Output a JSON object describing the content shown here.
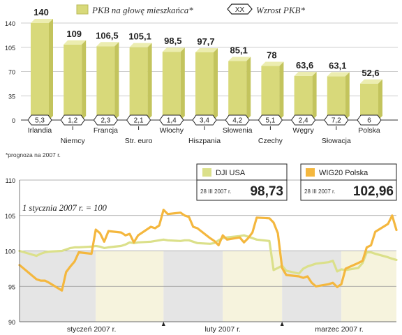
{
  "chart_data": [
    {
      "type": "bar",
      "legend": [
        {
          "label": "PKB na głowę mieszkańca*",
          "color": "#d8d97a"
        },
        {
          "label": "Wzrost PKB*",
          "marker": "XX"
        }
      ],
      "categories": [
        "Irlandia",
        "Niemcy",
        "Francja",
        "Str. euro",
        "Włochy",
        "Hiszpania",
        "Słowenia",
        "Czechy",
        "Węgry",
        "Słowacja",
        "Polska"
      ],
      "values": [
        140,
        109,
        106.5,
        105.1,
        98.5,
        97.7,
        85.1,
        78,
        63.6,
        63.1,
        52.6
      ],
      "value_labels": [
        "140",
        "109",
        "106,5",
        "105,1",
        "98,5",
        "97,7",
        "85,1",
        "78",
        "63,6",
        "63,1",
        "52,6"
      ],
      "growth_labels": [
        "5,3",
        "1,2",
        "2,3",
        "2,1",
        "1,4",
        "3,4",
        "4,2",
        "5,1",
        "2,4",
        "7,2",
        "6"
      ],
      "yticks": [
        "0",
        "35",
        "70",
        "105",
        "140"
      ],
      "ylim": [
        0,
        140
      ],
      "footnote": "*prognoza na 2007 r."
    },
    {
      "type": "line",
      "annotation": "1 stycznia 2007 r. = 100",
      "ylim": [
        90,
        110
      ],
      "yticks": [
        "90",
        "95",
        "100",
        "105",
        "110"
      ],
      "x_labels": [
        "styczeń 2007 r.",
        "luty 2007 r.",
        "marzec 2007 r."
      ],
      "x": [
        "2006-12-29",
        "2007-01-02",
        "2007-01-03",
        "2007-01-04",
        "2007-01-05",
        "2007-01-08",
        "2007-01-09",
        "2007-01-10",
        "2007-01-11",
        "2007-01-12",
        "2007-01-15",
        "2007-01-16",
        "2007-01-17",
        "2007-01-18",
        "2007-01-19",
        "2007-01-22",
        "2007-01-23",
        "2007-01-24",
        "2007-01-25",
        "2007-01-26",
        "2007-01-29",
        "2007-01-30",
        "2007-01-31",
        "2007-02-01",
        "2007-02-02",
        "2007-02-05",
        "2007-02-06",
        "2007-02-07",
        "2007-02-08",
        "2007-02-09",
        "2007-02-12",
        "2007-02-13",
        "2007-02-14",
        "2007-02-15",
        "2007-02-16",
        "2007-02-19",
        "2007-02-20",
        "2007-02-21",
        "2007-02-22",
        "2007-02-23",
        "2007-02-26",
        "2007-02-27",
        "2007-02-28",
        "2007-03-01",
        "2007-03-02",
        "2007-03-05",
        "2007-03-06",
        "2007-03-07",
        "2007-03-08",
        "2007-03-09",
        "2007-03-12",
        "2007-03-13",
        "2007-03-14",
        "2007-03-15",
        "2007-03-16",
        "2007-03-19",
        "2007-03-20",
        "2007-03-21",
        "2007-03-22",
        "2007-03-23",
        "2007-03-26",
        "2007-03-27",
        "2007-03-28"
      ],
      "series": [
        {
          "name": "WIG20 Polska",
          "color": "#f4b73e",
          "last_label": "28 III 2007 r.",
          "last_value": "102,96",
          "values": [
            98,
            96,
            95.8,
            95.8,
            95.5,
            94.4,
            97,
            97.8,
            98.5,
            99.8,
            99.6,
            103,
            102.5,
            101.3,
            102.8,
            102.6,
            102.2,
            102.4,
            101.2,
            102.2,
            103.4,
            103.2,
            103.6,
            105.8,
            105.2,
            105.4,
            105,
            104.8,
            103.4,
            103.2,
            101.8,
            101.4,
            100.8,
            102.2,
            101.6,
            101.9,
            101.2,
            101.8,
            102.6,
            104.7,
            104.6,
            104,
            102.5,
            97.6,
            96.6,
            96.4,
            96.2,
            96.4,
            95.5,
            95,
            95.3,
            95.5,
            94.9,
            95.3,
            97.5,
            98.3,
            98.6,
            100.5,
            100.8,
            102.7,
            103.8,
            105,
            102.96
          ]
        },
        {
          "name": "DJI USA",
          "color": "#dbe08a",
          "last_label": "28 III 2007 r.",
          "last_value": "98,73",
          "values": [
            100,
            99.3,
            99.6,
            99.8,
            99.9,
            100,
            100.2,
            100.4,
            100.5,
            100.5,
            100.6,
            100.7,
            100.6,
            100.4,
            100.5,
            100.7,
            100.9,
            101.2,
            101.1,
            101.2,
            101.3,
            101.4,
            101.5,
            101.6,
            101.5,
            101.4,
            101.5,
            101.5,
            101.3,
            101.1,
            101,
            101.1,
            101.5,
            101.8,
            101.9,
            102.1,
            102.2,
            102,
            101.8,
            101.6,
            101.4,
            97.3,
            97.6,
            97.9,
            97.2,
            96.8,
            97.5,
            97.8,
            98,
            98.2,
            98.4,
            98.6,
            97.1,
            97.4,
            97.3,
            97.6,
            98.3,
            99.8,
            99.8,
            99.6,
            99.1,
            98.9,
            98.73
          ]
        }
      ]
    }
  ]
}
